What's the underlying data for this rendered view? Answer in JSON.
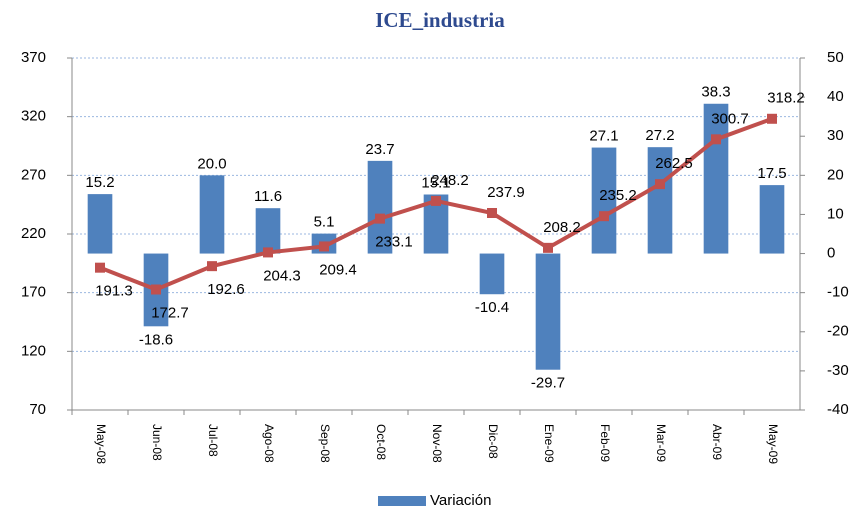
{
  "chart_data": {
    "type": "bar-line",
    "title": "ICE_industria",
    "categories": [
      "May-08",
      "Jun-08",
      "Jul-08",
      "Ago-08",
      "Sep-08",
      "Oct-08",
      "Nov-08",
      "Dic-08",
      "Ene-09",
      "Feb-09",
      "Mar-09",
      "Abr-09",
      "May-09"
    ],
    "series": [
      {
        "name": "Variación",
        "type": "bar",
        "axis": "y2",
        "color": "#4f81bd",
        "values": [
          15.2,
          -18.6,
          20.0,
          11.6,
          5.1,
          23.7,
          15.1,
          -10.4,
          -29.7,
          27.1,
          27.2,
          38.3,
          17.5
        ],
        "value_labels": [
          "15.2",
          "-18.6",
          "20.0",
          "11.6",
          "5.1",
          "23.7",
          "15.1",
          "-10.4",
          "-29.7",
          "27.1",
          "27.2",
          "38.3",
          "17.5"
        ]
      },
      {
        "type": "line",
        "axis": "y",
        "color": "#c0504d",
        "values": [
          191.3,
          172.7,
          192.6,
          204.3,
          209.4,
          233.1,
          248.2,
          237.9,
          208.2,
          235.2,
          262.5,
          300.7,
          318.2
        ]
      }
    ],
    "ylim": [
      70,
      370
    ],
    "yticks": [
      70,
      120,
      170,
      220,
      270,
      320,
      370
    ],
    "y2lim": [
      -40,
      50
    ],
    "y2ticks": [
      -40,
      -30,
      -20,
      -10,
      0,
      10,
      20,
      30,
      40,
      50
    ],
    "grid": true,
    "legend": "bottom"
  }
}
